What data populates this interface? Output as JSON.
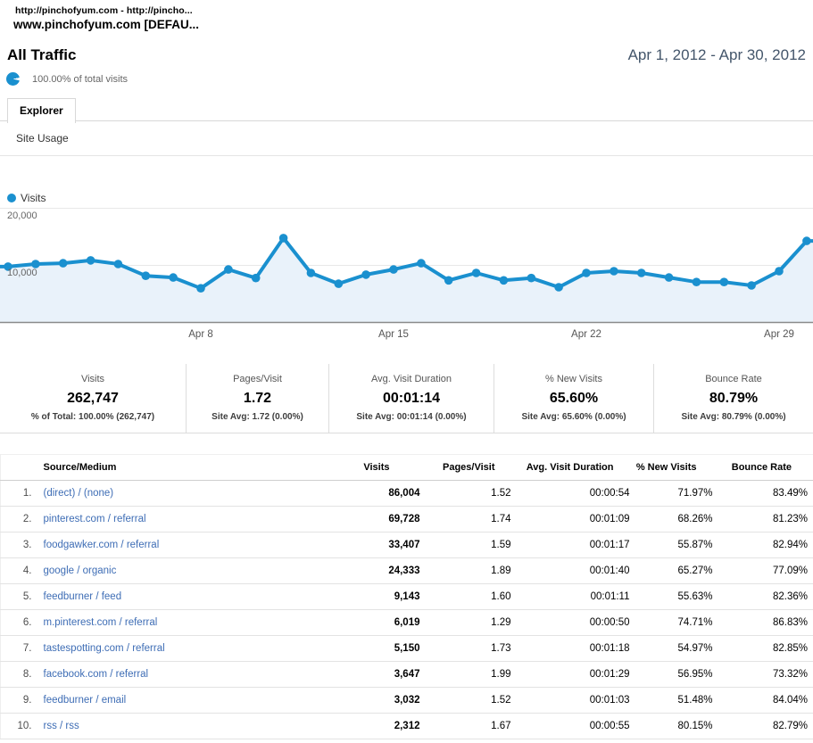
{
  "header": {
    "account_line": "http://pinchofyum.com - http://pincho...",
    "profile_line": "www.pinchofyum.com [DEFAU...",
    "report_title": "All Traffic",
    "date_range": "Apr 1, 2012 - Apr 30, 2012",
    "visits_share_note": "100.00% of total visits"
  },
  "tabs": {
    "explorer": "Explorer",
    "subtab": "Site Usage"
  },
  "chart_data": {
    "type": "area",
    "title": "Visits over time",
    "legend": [
      "Visits"
    ],
    "legend_position": "top-left",
    "x": [
      "Apr 1",
      "Apr 2",
      "Apr 3",
      "Apr 4",
      "Apr 5",
      "Apr 6",
      "Apr 7",
      "Apr 8",
      "Apr 9",
      "Apr 10",
      "Apr 11",
      "Apr 12",
      "Apr 13",
      "Apr 14",
      "Apr 15",
      "Apr 16",
      "Apr 17",
      "Apr 18",
      "Apr 19",
      "Apr 20",
      "Apr 21",
      "Apr 22",
      "Apr 23",
      "Apr 24",
      "Apr 25",
      "Apr 26",
      "Apr 27",
      "Apr 28",
      "Apr 29",
      "Apr 30"
    ],
    "values": [
      9700,
      10150,
      10300,
      10800,
      10150,
      8100,
      7800,
      5900,
      9200,
      7700,
      14700,
      8600,
      6700,
      8300,
      9200,
      10300,
      7300,
      8600,
      7300,
      7700,
      6100,
      8600,
      8900,
      8600,
      7800,
      7000,
      7000,
      6400,
      8900,
      14200
    ],
    "ylim": [
      0,
      20000
    ],
    "grid": true,
    "yticks": [
      {
        "label": "10,000",
        "value": 10000
      },
      {
        "label": "20,000",
        "value": 20000
      }
    ],
    "xticks": [
      {
        "label": "Apr 8",
        "index": 7
      },
      {
        "label": "Apr 15",
        "index": 14
      },
      {
        "label": "Apr 22",
        "index": 21
      },
      {
        "label": "Apr 29",
        "index": 28
      }
    ],
    "colors": {
      "line": "#1a90cf",
      "fill": "#e9f2fa",
      "grid": "#e8e8e8",
      "axis": "#8a8a8a",
      "tick_text": "#666666"
    }
  },
  "metrics": [
    {
      "label": "Visits",
      "value": "262,747",
      "sub": "% of Total: 100.00% (262,747)"
    },
    {
      "label": "Pages/Visit",
      "value": "1.72",
      "sub": "Site Avg: 1.72 (0.00%)"
    },
    {
      "label": "Avg. Visit Duration",
      "value": "00:01:14",
      "sub": "Site Avg: 00:01:14 (0.00%)"
    },
    {
      "label": "% New Visits",
      "value": "65.60%",
      "sub": "Site Avg: 65.60% (0.00%)"
    },
    {
      "label": "Bounce Rate",
      "value": "80.79%",
      "sub": "Site Avg: 80.79% (0.00%)"
    }
  ],
  "table": {
    "columns": [
      "Source/Medium",
      "Visits",
      "Pages/Visit",
      "Avg. Visit Duration",
      "% New Visits",
      "Bounce Rate"
    ],
    "rows": [
      {
        "rank": "1.",
        "source": "(direct) / (none)",
        "visits": "86,004",
        "pages_visit": "1.52",
        "avg_duration": "00:00:54",
        "pct_new": "71.97%",
        "bounce": "83.49%"
      },
      {
        "rank": "2.",
        "source": "pinterest.com / referral",
        "visits": "69,728",
        "pages_visit": "1.74",
        "avg_duration": "00:01:09",
        "pct_new": "68.26%",
        "bounce": "81.23%"
      },
      {
        "rank": "3.",
        "source": "foodgawker.com / referral",
        "visits": "33,407",
        "pages_visit": "1.59",
        "avg_duration": "00:01:17",
        "pct_new": "55.87%",
        "bounce": "82.94%"
      },
      {
        "rank": "4.",
        "source": "google / organic",
        "visits": "24,333",
        "pages_visit": "1.89",
        "avg_duration": "00:01:40",
        "pct_new": "65.27%",
        "bounce": "77.09%"
      },
      {
        "rank": "5.",
        "source": "feedburner / feed",
        "visits": "9,143",
        "pages_visit": "1.60",
        "avg_duration": "00:01:11",
        "pct_new": "55.63%",
        "bounce": "82.36%"
      },
      {
        "rank": "6.",
        "source": "m.pinterest.com / referral",
        "visits": "6,019",
        "pages_visit": "1.29",
        "avg_duration": "00:00:50",
        "pct_new": "74.71%",
        "bounce": "86.83%"
      },
      {
        "rank": "7.",
        "source": "tastespotting.com / referral",
        "visits": "5,150",
        "pages_visit": "1.73",
        "avg_duration": "00:01:18",
        "pct_new": "54.97%",
        "bounce": "82.85%"
      },
      {
        "rank": "8.",
        "source": "facebook.com / referral",
        "visits": "3,647",
        "pages_visit": "1.99",
        "avg_duration": "00:01:29",
        "pct_new": "56.95%",
        "bounce": "73.32%"
      },
      {
        "rank": "9.",
        "source": "feedburner / email",
        "visits": "3,032",
        "pages_visit": "1.52",
        "avg_duration": "00:01:03",
        "pct_new": "51.48%",
        "bounce": "84.04%"
      },
      {
        "rank": "10.",
        "source": "rss / rss",
        "visits": "2,312",
        "pages_visit": "1.67",
        "avg_duration": "00:00:55",
        "pct_new": "80.15%",
        "bounce": "82.79%"
      }
    ]
  }
}
